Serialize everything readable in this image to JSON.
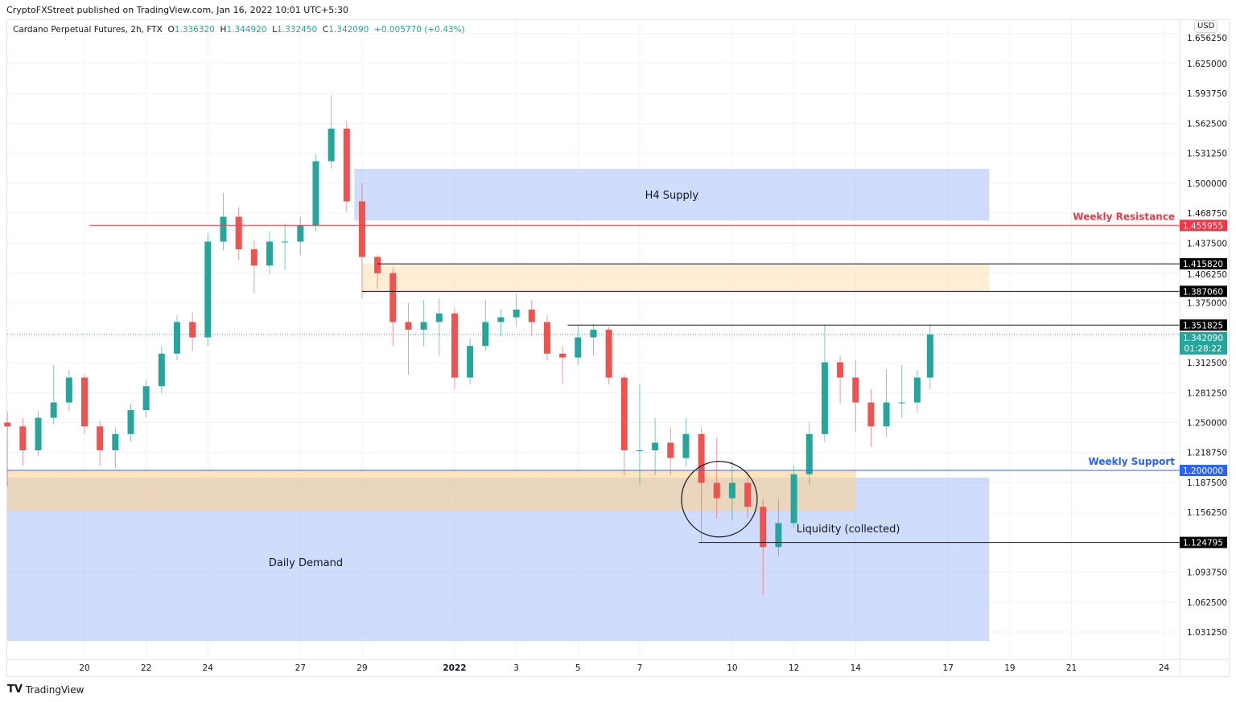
{
  "publisher": "CryptoFXStreet published on TradingView.com, Jan 16, 2022 10:01 UTC+5:30",
  "legend": {
    "symbol": "Cardano Perpetual Futures, 2h, FTX",
    "o_label": "O",
    "o": "1.336320",
    "h_label": "H",
    "h": "1.344920",
    "l_label": "L",
    "l": "1.332450",
    "c_label": "C",
    "c": "1.342090",
    "change": "+0.005770 (+0.43%)"
  },
  "currency": "USD",
  "footer_brand": "TradingView",
  "countdown": "01:28:22",
  "colors": {
    "up": "#26a69a",
    "down": "#ef5350",
    "resistance": "#f23645",
    "support": "#2962ff",
    "supply": "#a9bff8",
    "orange_zone": "#ffe0b2",
    "label_dark": "#000000"
  },
  "chart_data": {
    "type": "candlestick",
    "title": "",
    "ylim": [
      1.01,
      1.66
    ],
    "grid": true,
    "y_ticks": [
      "1.656250",
      "1.625000",
      "1.593750",
      "1.562500",
      "1.531250",
      "1.500000",
      "1.468750",
      "1.437500",
      "1.406250",
      "1.375000",
      "1.312500",
      "1.281250",
      "1.250000",
      "1.218750",
      "1.187500",
      "1.156250",
      "1.093750",
      "1.062500",
      "1.031250"
    ],
    "y_tick_values": [
      1.65625,
      1.625,
      1.59375,
      1.5625,
      1.53125,
      1.5,
      1.46875,
      1.4375,
      1.40625,
      1.375,
      1.3125,
      1.28125,
      1.25,
      1.21875,
      1.1875,
      1.15625,
      1.09375,
      1.0625,
      1.03125
    ],
    "x_ticks": [
      {
        "label": "20",
        "date": "2021-12-20"
      },
      {
        "label": "22",
        "date": "2021-12-22"
      },
      {
        "label": "24",
        "date": "2021-12-24"
      },
      {
        "label": "27",
        "date": "2021-12-27"
      },
      {
        "label": "29",
        "date": "2021-12-29"
      },
      {
        "label": "2022",
        "date": "2022-01-01"
      },
      {
        "label": "3",
        "date": "2022-01-03"
      },
      {
        "label": "5",
        "date": "2022-01-05"
      },
      {
        "label": "7",
        "date": "2022-01-07"
      },
      {
        "label": "10",
        "date": "2022-01-10"
      },
      {
        "label": "12",
        "date": "2022-01-12"
      },
      {
        "label": "14",
        "date": "2022-01-14"
      },
      {
        "label": "17",
        "date": "2022-01-17"
      },
      {
        "label": "19",
        "date": "2022-01-19"
      },
      {
        "label": "21",
        "date": "2022-01-21"
      },
      {
        "label": "24",
        "date": "2022-01-24"
      }
    ],
    "candles": [
      [
        "2021-12-17T12:00",
        1.25,
        1.262,
        1.183,
        1.246
      ],
      [
        "2021-12-18T00:00",
        1.246,
        1.255,
        1.205,
        1.221
      ],
      [
        "2021-12-18T12:00",
        1.221,
        1.262,
        1.215,
        1.255
      ],
      [
        "2021-12-19T00:00",
        1.255,
        1.31,
        1.248,
        1.271
      ],
      [
        "2021-12-19T12:00",
        1.271,
        1.305,
        1.262,
        1.297
      ],
      [
        "2021-12-20T00:00",
        1.297,
        1.3,
        1.238,
        1.246
      ],
      [
        "2021-12-20T12:00",
        1.246,
        1.252,
        1.205,
        1.221
      ],
      [
        "2021-12-21T00:00",
        1.221,
        1.245,
        1.202,
        1.238
      ],
      [
        "2021-12-21T12:00",
        1.238,
        1.27,
        1.23,
        1.263
      ],
      [
        "2021-12-22T00:00",
        1.263,
        1.295,
        1.255,
        1.288
      ],
      [
        "2021-12-22T12:00",
        1.288,
        1.33,
        1.28,
        1.322
      ],
      [
        "2021-12-23T00:00",
        1.322,
        1.362,
        1.315,
        1.355
      ],
      [
        "2021-12-23T12:00",
        1.355,
        1.365,
        1.325,
        1.339
      ],
      [
        "2021-12-24T00:00",
        1.339,
        1.448,
        1.33,
        1.439
      ],
      [
        "2021-12-24T12:00",
        1.439,
        1.49,
        1.43,
        1.465
      ],
      [
        "2021-12-25T00:00",
        1.465,
        1.475,
        1.42,
        1.431
      ],
      [
        "2021-12-25T12:00",
        1.431,
        1.44,
        1.385,
        1.414
      ],
      [
        "2021-12-26T00:00",
        1.414,
        1.45,
        1.405,
        1.439
      ],
      [
        "2021-12-26T12:00",
        1.439,
        1.458,
        1.41,
        1.439
      ],
      [
        "2021-12-27T00:00",
        1.439,
        1.465,
        1.425,
        1.456
      ],
      [
        "2021-12-27T12:00",
        1.456,
        1.53,
        1.45,
        1.523
      ],
      [
        "2021-12-28T00:00",
        1.523,
        1.592,
        1.515,
        1.557
      ],
      [
        "2021-12-28T12:00",
        1.557,
        1.565,
        1.47,
        1.481
      ],
      [
        "2021-12-29T00:00",
        1.481,
        1.5,
        1.38,
        1.423
      ],
      [
        "2021-12-29T12:00",
        1.423,
        1.425,
        1.39,
        1.406
      ],
      [
        "2021-12-30T00:00",
        1.406,
        1.412,
        1.33,
        1.355
      ],
      [
        "2021-12-30T12:00",
        1.355,
        1.375,
        1.3,
        1.347
      ],
      [
        "2021-12-31T00:00",
        1.347,
        1.378,
        1.33,
        1.355
      ],
      [
        "2021-12-31T12:00",
        1.355,
        1.38,
        1.32,
        1.364
      ],
      [
        "2022-01-01T00:00",
        1.364,
        1.37,
        1.285,
        1.297
      ],
      [
        "2022-01-01T12:00",
        1.297,
        1.338,
        1.29,
        1.33
      ],
      [
        "2022-01-02T00:00",
        1.33,
        1.378,
        1.325,
        1.355
      ],
      [
        "2022-01-02T12:00",
        1.355,
        1.368,
        1.34,
        1.36
      ],
      [
        "2022-01-03T00:00",
        1.36,
        1.384,
        1.35,
        1.368
      ],
      [
        "2022-01-03T12:00",
        1.368,
        1.378,
        1.34,
        1.355
      ],
      [
        "2022-01-04T00:00",
        1.355,
        1.362,
        1.315,
        1.322
      ],
      [
        "2022-01-04T12:00",
        1.322,
        1.33,
        1.29,
        1.318
      ],
      [
        "2022-01-05T00:00",
        1.318,
        1.352,
        1.31,
        1.339
      ],
      [
        "2022-01-05T12:00",
        1.339,
        1.353,
        1.32,
        1.347
      ],
      [
        "2022-01-06T00:00",
        1.347,
        1.35,
        1.29,
        1.297
      ],
      [
        "2022-01-06T12:00",
        1.297,
        1.3,
        1.195,
        1.221
      ],
      [
        "2022-01-07T00:00",
        1.221,
        1.29,
        1.185,
        1.221
      ],
      [
        "2022-01-07T12:00",
        1.221,
        1.255,
        1.195,
        1.229
      ],
      [
        "2022-01-08T00:00",
        1.229,
        1.245,
        1.195,
        1.213
      ],
      [
        "2022-01-08T12:00",
        1.213,
        1.255,
        1.205,
        1.238
      ],
      [
        "2022-01-09T00:00",
        1.238,
        1.245,
        1.125,
        1.187
      ],
      [
        "2022-01-09T12:00",
        1.187,
        1.235,
        1.15,
        1.171
      ],
      [
        "2022-01-10T00:00",
        1.171,
        1.21,
        1.148,
        1.187
      ],
      [
        "2022-01-10T12:00",
        1.187,
        1.2,
        1.15,
        1.162
      ],
      [
        "2022-01-11T00:00",
        1.162,
        1.17,
        1.07,
        1.12
      ],
      [
        "2022-01-11T12:00",
        1.12,
        1.17,
        1.11,
        1.145
      ],
      [
        "2022-01-12T00:00",
        1.145,
        1.205,
        1.14,
        1.196
      ],
      [
        "2022-01-12T12:00",
        1.196,
        1.25,
        1.185,
        1.238
      ],
      [
        "2022-01-13T00:00",
        1.238,
        1.352,
        1.23,
        1.313
      ],
      [
        "2022-01-13T12:00",
        1.313,
        1.32,
        1.27,
        1.297
      ],
      [
        "2022-01-14T00:00",
        1.297,
        1.315,
        1.24,
        1.271
      ],
      [
        "2022-01-14T12:00",
        1.271,
        1.285,
        1.225,
        1.246
      ],
      [
        "2022-01-15T00:00",
        1.246,
        1.305,
        1.235,
        1.271
      ],
      [
        "2022-01-15T12:00",
        1.271,
        1.31,
        1.255,
        1.271
      ],
      [
        "2022-01-16T00:00",
        1.271,
        1.305,
        1.26,
        1.297
      ],
      [
        "2022-01-16T10:00",
        1.297,
        1.352,
        1.285,
        1.342
      ]
    ],
    "current_price": 1.34209,
    "levels": [
      {
        "label": "1.455955",
        "value": 1.455955,
        "start": "2021-12-20T04:00",
        "color": "#f23645",
        "name": "Weekly Resistance",
        "badge_bg": "#f23645"
      },
      {
        "label": "1.415820",
        "value": 1.41582,
        "start": "2021-12-29T12:00",
        "color": "#131722",
        "name": "",
        "badge_bg": "#000000"
      },
      {
        "label": "1.387060",
        "value": 1.38706,
        "start": "2021-12-29T00:00",
        "color": "#131722",
        "name": "",
        "badge_bg": "#000000"
      },
      {
        "label": "1.351825",
        "value": 1.351825,
        "start": "2022-01-04T16:00",
        "color": "#131722",
        "name": "",
        "badge_bg": "#000000"
      },
      {
        "label": "1.200000",
        "value": 1.2,
        "start": "2021-12-17T06:00",
        "color": "#2962ff",
        "name": "Weekly Support",
        "badge_bg": "#2962ff"
      },
      {
        "label": "1.124795",
        "value": 1.124795,
        "start": "2022-01-08T22:00",
        "color": "#131722",
        "name": "",
        "badge_bg": "#000000"
      }
    ],
    "zones": [
      {
        "name": "H4 Supply",
        "top": 1.515,
        "bottom": 1.461,
        "start": "2021-12-28T18:00",
        "end": "2022-01-18T08:00",
        "color": "#a9bff8"
      },
      {
        "name": "",
        "top": 1.41582,
        "bottom": 1.38706,
        "start": "2021-12-29T00:00",
        "end": "2022-01-18T08:00",
        "color": "#ffe0b2"
      },
      {
        "name": "Daily Demand",
        "top": 1.1925,
        "bottom": 1.022,
        "start": "2021-12-17T06:00",
        "end": "2022-01-18T08:00",
        "color": "#a9bff8"
      },
      {
        "name": "",
        "top": 1.2,
        "bottom": 1.158,
        "start": "2021-12-17T06:00",
        "end": "2022-01-14T00:00",
        "color": "#ffd08a"
      }
    ],
    "annotations": [
      {
        "text": "Liquidity (collected)",
        "date": "2022-01-12T02:00",
        "value": 1.1395
      }
    ],
    "circle": {
      "date": "2022-01-09T14:00",
      "value": 1.17
    }
  }
}
